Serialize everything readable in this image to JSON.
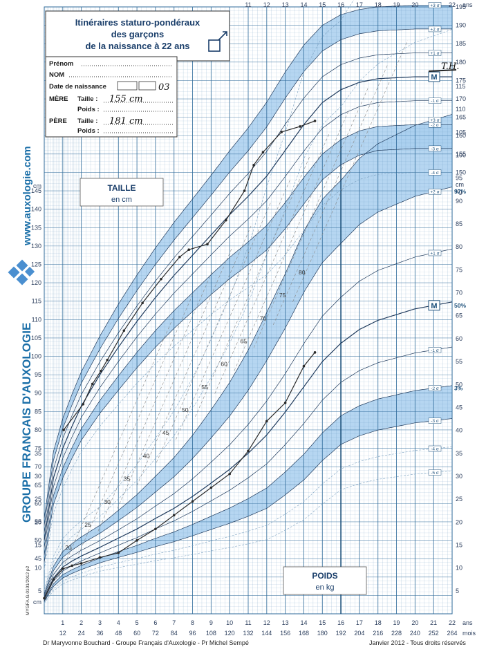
{
  "header": {
    "title_line1": "Itinéraires staturo-pondéraux",
    "title_line2": "des garçons",
    "title_line3": "de la naissance à 22 ans",
    "male_symbol": "♂"
  },
  "form": {
    "prenom_label": "Prénom",
    "nom_label": "NOM",
    "birth_label": "Date de naissance",
    "birth_value": "03",
    "mere_label": "MÈRE",
    "pere_label": "PÈRE",
    "taille_label": "Taille :",
    "poids_label": "Poids :",
    "mere_taille": "155 cm",
    "pere_taille": "181 cm"
  },
  "side": {
    "website": "www.auxologie.com",
    "group": "GROUPE FRANCAIS D'AUXOLOGIE",
    "code": "MYGFA.G.0101/2012 p2"
  },
  "labels": {
    "taille_title": "TAILLE",
    "taille_unit": "en cm",
    "poids_title": "POIDS",
    "poids_unit": "en kg",
    "cm": "cm",
    "kg": "kg",
    "ans": "ans",
    "mois": "mois",
    "median": "M",
    "p97": "97%",
    "p50": "50%",
    "p3": "3%",
    "annotation": "T.H."
  },
  "footer": {
    "authors": "Dr Maryvonne Bouchard - Groupe Français d'Auxologie - Pr Michel Sempé",
    "date": "Janvier 2012 - Tous droits réservés"
  },
  "colors": {
    "band": "#a9cfee",
    "grid": "#5a8fb8",
    "major": "#2e6a9a",
    "curve": "#1f3a5c",
    "patient": "#2a2a2a"
  },
  "chart_data": {
    "type": "line",
    "x_years_ticks": [
      "1",
      "2",
      "3",
      "4",
      "5",
      "6",
      "7",
      "8",
      "9",
      "10",
      "11",
      "12",
      "13",
      "14",
      "15",
      "16",
      "17",
      "18",
      "19",
      "20",
      "21",
      "22"
    ],
    "x_months_ticks": [
      "12",
      "24",
      "36",
      "48",
      "60",
      "72",
      "84",
      "96",
      "108",
      "120",
      "132",
      "144",
      "156",
      "168",
      "180",
      "192",
      "204",
      "216",
      "228",
      "240",
      "252",
      "264"
    ],
    "xlim_years": [
      0,
      22
    ],
    "height_axis": {
      "unit": "cm",
      "ylim": [
        30,
        195
      ]
    },
    "weight_axis": {
      "unit": "kg",
      "ylim": [
        0,
        115
      ]
    },
    "height_sd_labels": [
      "+3 σ",
      "+2 σ",
      "+1 σ",
      "M",
      "-1 σ",
      "-2 σ",
      "-3 σ",
      "-4 σ"
    ],
    "weight_sd_labels": [
      "+5 σ",
      "+4 σ",
      "+3 σ",
      "+2 σ",
      "+1 σ",
      "M",
      "-1 σ",
      "-2 σ",
      "-3 σ",
      "-4 σ",
      "-5 σ"
    ],
    "height_reference": {
      "x": [
        0,
        0.5,
        1,
        1.5,
        2,
        3,
        4,
        5,
        6,
        7,
        8,
        9,
        10,
        11,
        12,
        13,
        14,
        15,
        16,
        17,
        18,
        20,
        22
      ],
      "median": [
        50,
        67,
        75,
        81,
        86.5,
        95,
        102.5,
        109.5,
        116,
        122,
        127.5,
        133,
        138.5,
        143.5,
        149,
        156,
        163,
        169,
        172.5,
        174.5,
        175.5,
        176,
        176
      ],
      "sd": [
        2,
        2.4,
        2.7,
        2.9,
        3.1,
        3.5,
        3.9,
        4.2,
        4.5,
        4.8,
        5.1,
        5.4,
        5.8,
        6.2,
        6.7,
        7.1,
        7.2,
        7,
        6.8,
        6.6,
        6.5,
        6.5,
        6.5
      ]
    },
    "weight_reference": {
      "x": [
        0,
        0.5,
        1,
        1.5,
        2,
        3,
        4,
        5,
        6,
        7,
        8,
        9,
        10,
        11,
        12,
        13,
        14,
        15,
        16,
        17,
        18,
        20,
        22
      ],
      "median": [
        3.4,
        7.8,
        10.2,
        11.5,
        12.6,
        14.5,
        16.5,
        18.5,
        20.8,
        23,
        25.6,
        28.5,
        31.5,
        35,
        39,
        44,
        49.5,
        55,
        59,
        62,
        64,
        66.5,
        68
      ],
      "band_inner_factor": [
        0.09,
        0.1,
        0.1,
        0.1,
        0.1,
        0.1,
        0.11,
        0.12,
        0.13,
        0.14,
        0.15,
        0.16,
        0.17,
        0.18,
        0.19,
        0.19,
        0.19,
        0.18,
        0.17,
        0.17,
        0.17,
        0.17,
        0.17
      ]
    },
    "weight_isolines": [
      "20",
      "25",
      "30",
      "35",
      "40",
      "45",
      "50",
      "55",
      "60",
      "65",
      "70",
      "75",
      "80"
    ],
    "series": [
      {
        "name": "",
        "measure": "height",
        "x": [
          1.05,
          2.1,
          2.6,
          3.05,
          3.4,
          4.3,
          5.3,
          6.3,
          7.3,
          7.8,
          8.8,
          9.8,
          10.8,
          11.3,
          11.8,
          12.8,
          13.8,
          14.6
        ],
        "values": [
          80,
          87,
          92.5,
          96,
          99,
          107,
          114.5,
          121,
          127,
          129,
          130.5,
          137,
          145,
          152,
          155.5,
          161,
          162.5,
          164
        ]
      },
      {
        "name": "",
        "measure": "weight",
        "x": [
          0,
          0.5,
          1,
          1.5,
          2,
          3,
          4,
          5,
          6,
          7,
          8,
          9,
          10,
          11,
          12,
          13,
          14,
          14.6
        ],
        "values": [
          3.4,
          7.5,
          9.8,
          10.5,
          11,
          12.3,
          13.3,
          16,
          18.5,
          21.5,
          24.5,
          27.5,
          30.5,
          35.5,
          42,
          46,
          54,
          57
        ]
      }
    ]
  }
}
